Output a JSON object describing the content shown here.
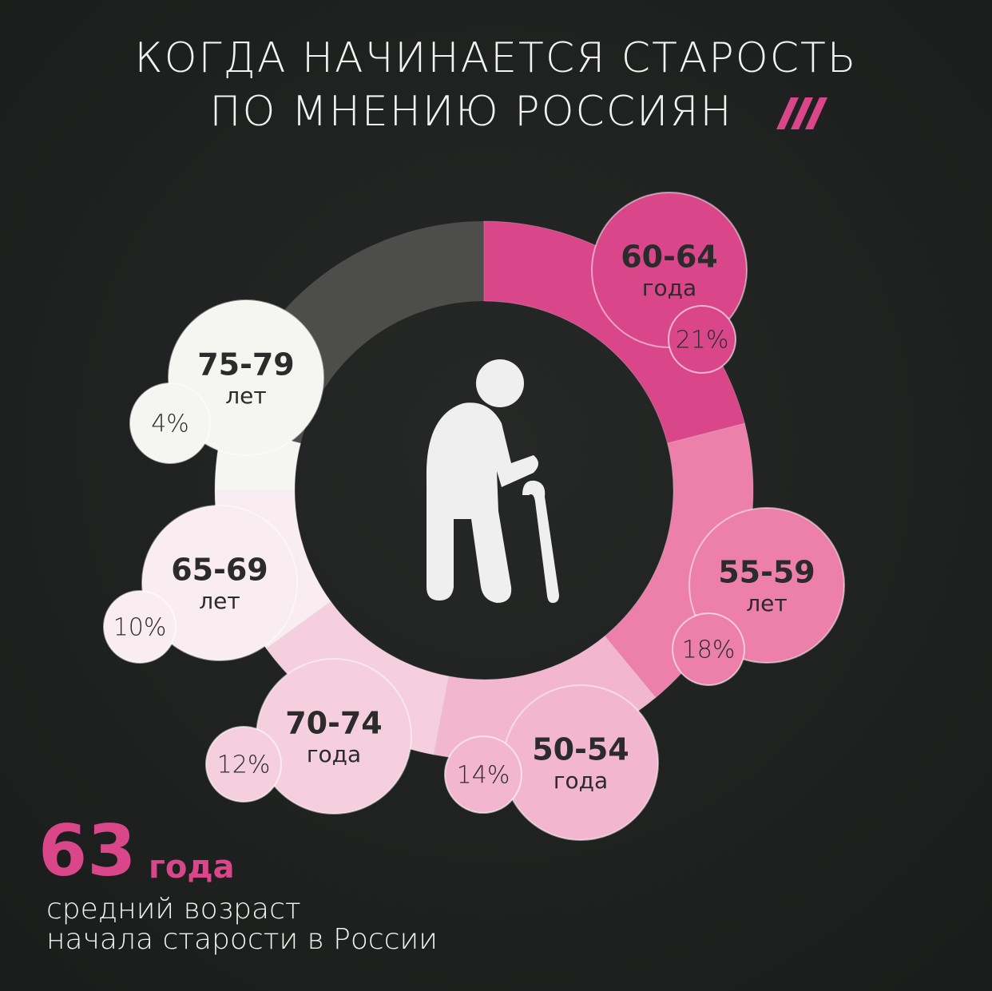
{
  "chart_data": {
    "type": "donut",
    "title": [
      "КОГДА НАЧИНАЕТСЯ СТАРОСТЬ",
      "ПО МНЕНИЮ РОССИЯН"
    ],
    "categories": [
      "60-64",
      "55-59",
      "50-54",
      "70-74",
      "65-69",
      "75-79"
    ],
    "units": [
      "года",
      "лет",
      "года",
      "года",
      "лет",
      "лет"
    ],
    "values": [
      21,
      18,
      14,
      12,
      10,
      4
    ],
    "value_labels": [
      "21%",
      "18%",
      "14%",
      "12%",
      "10%",
      "4%"
    ],
    "colors": [
      "#d9478a",
      "#ec80ab",
      "#f3b6cf",
      "#f6cfdf",
      "#faedf2",
      "#f5f6f2"
    ]
  },
  "summary": {
    "value": 63,
    "unit": "года",
    "caption": [
      "средний возраст",
      "начала старости в России"
    ]
  }
}
